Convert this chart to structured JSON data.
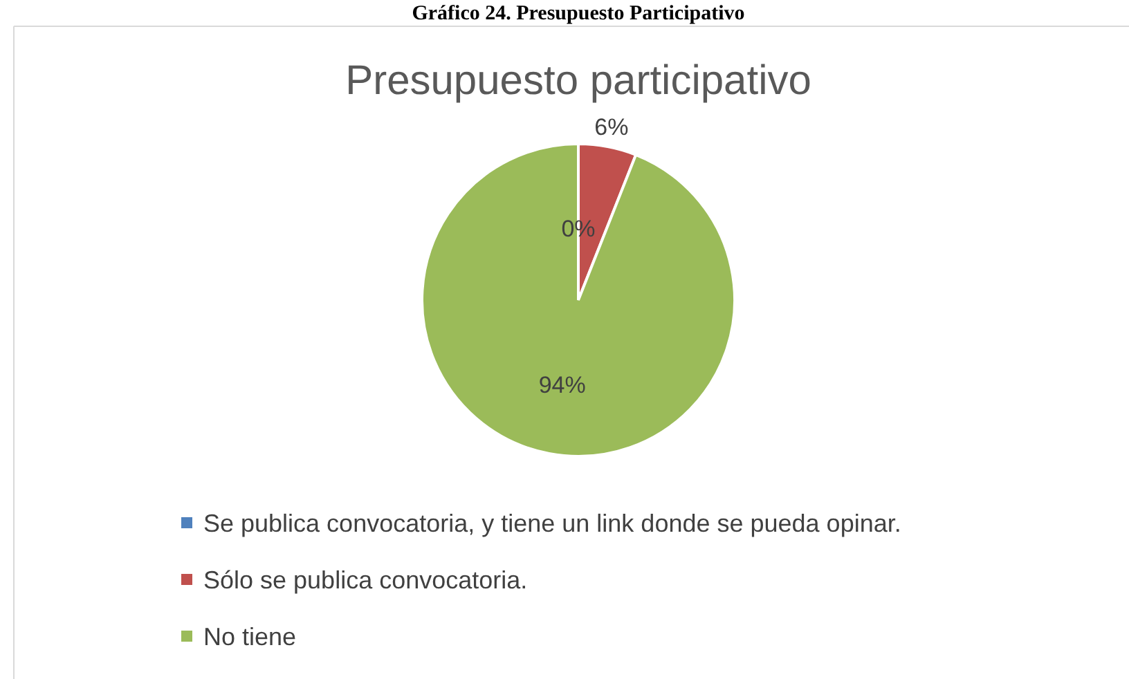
{
  "chart_data": {
    "type": "pie",
    "title": "Presupuesto participativo",
    "annotations": [
      "Gráfico 24. Presupuesto Participativo"
    ],
    "categories": [
      "Se publica convocatoria, y tiene un link donde se pueda opinar.",
      "Sólo se publica convocatoria.",
      "No tiene"
    ],
    "values": [
      0,
      6,
      94
    ],
    "colors": [
      "#4f81bd",
      "#c0504d",
      "#9bbb59"
    ],
    "value_labels": [
      "0%",
      "6%",
      "94%"
    ],
    "legend": "bottom"
  }
}
